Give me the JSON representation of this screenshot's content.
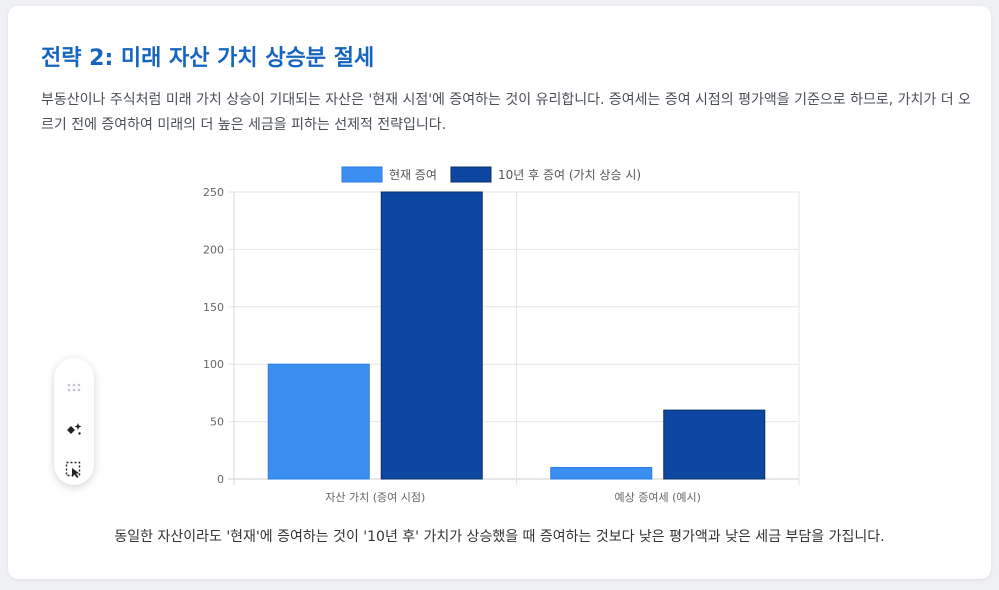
{
  "header": {
    "title": "전략 2: 미래 자산 가치 상승분 절세",
    "description": "부동산이나 주식처럼 미래 가치 상승이 기대되는 자산은 '현재 시점'에 증여하는 것이 유리합니다. 증여세는 증여 시점의 평가액을 기준으로 하므로, 가치가 더 오르기 전에 증여하여 미래의 더 높은 세금을 피하는 선제적 전략입니다."
  },
  "chart_data": {
    "type": "bar",
    "categories": [
      "자산 가치 (증여 시점)",
      "예상 증여세 (예시)"
    ],
    "series": [
      {
        "name": "현재 증여",
        "values": [
          100,
          10
        ],
        "color": "#3b8ff3"
      },
      {
        "name": "10년 후 증여 (가치 상승 시)",
        "values": [
          250,
          60
        ],
        "color": "#0d47a1"
      }
    ],
    "ylim": [
      0,
      250
    ],
    "yticks": [
      0,
      50,
      100,
      150,
      200,
      250
    ],
    "grid": true,
    "legend": "top-center"
  },
  "caption": "동일한 자산이라도 '현재'에 증여하는 것이 '10년 후' 가치가 상승했을 때 증여하는 것보다 낮은 평가액과 낮은 세금 부담을 가집니다.",
  "toolbar": {
    "items": [
      "drag-handle-icon",
      "magic-sparkle-icon",
      "select-arrow-icon"
    ]
  }
}
